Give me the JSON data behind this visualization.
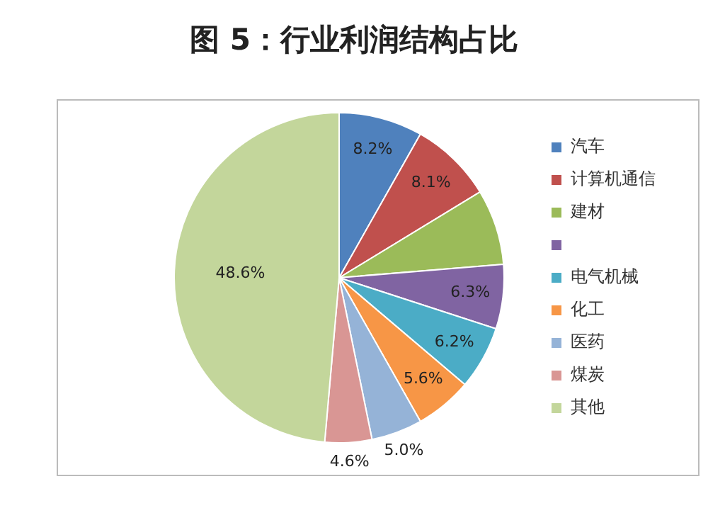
{
  "chart_data": {
    "type": "pie",
    "title": "图 5：行业利润结构占比",
    "categories": [
      "汽车",
      "计算机通信",
      "建材",
      null,
      "电气机械",
      "化工",
      "医药",
      "煤炭",
      "其他"
    ],
    "values": [
      8.2,
      8.1,
      7.4,
      6.3,
      6.2,
      5.6,
      5.0,
      4.6,
      48.6
    ],
    "colors": [
      "#4f81bd",
      "#c0504d",
      "#9bbb59",
      "#8064a2",
      "#4bacc6",
      "#f79646",
      "#95b3d7",
      "#d99694",
      "#c3d69b"
    ],
    "value_labels": [
      "8.2%",
      "8.1%",
      null,
      "6.3%",
      "6.2%",
      "5.6%",
      "5.0%",
      "4.6%",
      "48.6%"
    ],
    "legend": "right"
  }
}
